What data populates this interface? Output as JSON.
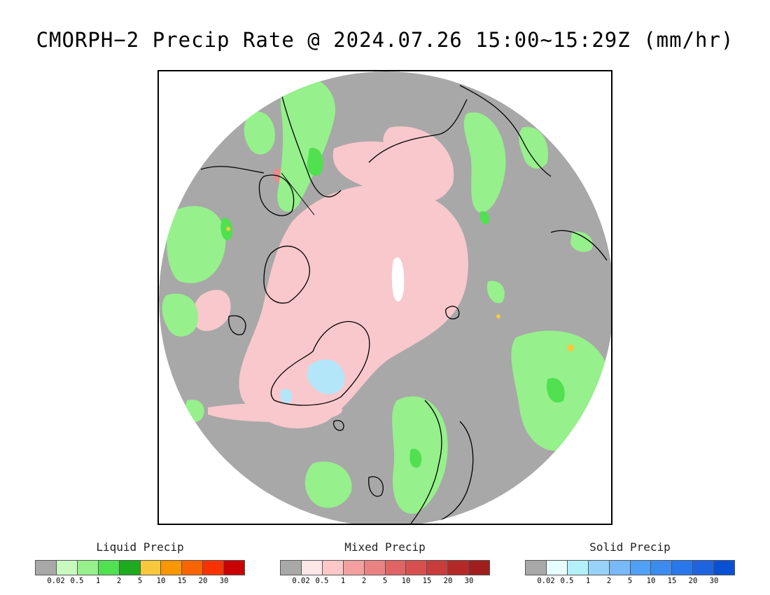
{
  "title": "CMORPH−2 Precip Rate @ 2024.07.26 15:00~15:29Z (mm/hr)",
  "colors": {
    "no_precip": "#a8a8a8",
    "frame": "#000000",
    "coastline": "#000000"
  },
  "legends": [
    {
      "id": "liquid",
      "title": "Liquid Precip",
      "colors": [
        "#a8a8a8",
        "#c8fac0",
        "#96f08c",
        "#50e050",
        "#1eaa1e",
        "#fac83c",
        "#fa9600",
        "#fa6400",
        "#fa3200",
        "#c80000"
      ],
      "ticks": [
        "0.02",
        "0.5",
        "1",
        "2",
        "5",
        "10",
        "15",
        "20",
        "30"
      ]
    },
    {
      "id": "mixed",
      "title": "Mixed Precip",
      "colors": [
        "#a8a8a8",
        "#ffe6e6",
        "#ffc8c8",
        "#f5a0a0",
        "#eb8282",
        "#e16464",
        "#d75050",
        "#c83c3c",
        "#b42828",
        "#a01e1e"
      ],
      "ticks": [
        "0.02",
        "0.5",
        "1",
        "2",
        "5",
        "10",
        "15",
        "20",
        "30"
      ]
    },
    {
      "id": "solid",
      "title": "Solid Precip",
      "colors": [
        "#a8a8a8",
        "#e6ffff",
        "#b4f0fa",
        "#96d2fa",
        "#78b9fa",
        "#50a0f5",
        "#3c8cf0",
        "#2878eb",
        "#1e64e1",
        "#0a50d2"
      ],
      "ticks": [
        "0.02",
        "0.5",
        "1",
        "2",
        "5",
        "10",
        "15",
        "20",
        "30"
      ]
    }
  ]
}
